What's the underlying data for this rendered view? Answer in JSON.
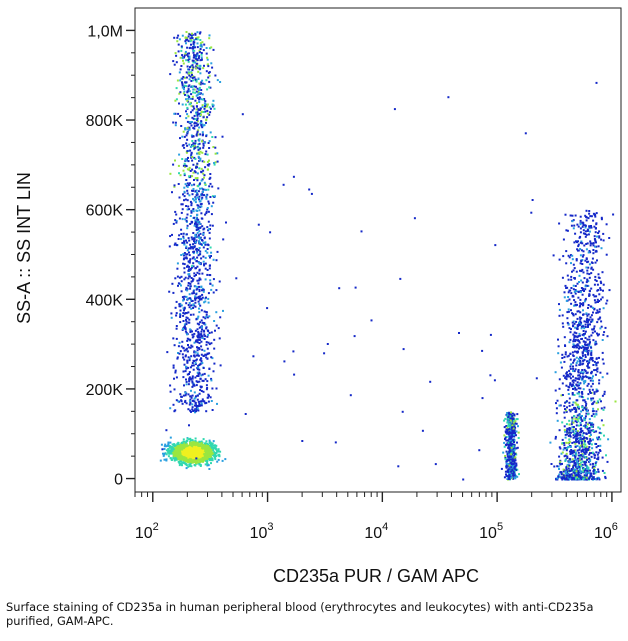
{
  "chart_data": {
    "type": "scatter",
    "plot_style": "pseudocolor density dot plot",
    "xlabel": "CD235a PUR / GAM APC",
    "ylabel": "SS-A :: SS INT LIN",
    "x_scale": "log",
    "xlim": [
      70,
      1200000
    ],
    "ylim": [
      -30000,
      1050000
    ],
    "x_ticks": [
      {
        "base": "10",
        "exp": "2",
        "value": 100
      },
      {
        "base": "10",
        "exp": "3",
        "value": 1000
      },
      {
        "base": "10",
        "exp": "4",
        "value": 10000
      },
      {
        "base": "10",
        "exp": "5",
        "value": 100000
      },
      {
        "base": "10",
        "exp": "6",
        "value": 1000000
      }
    ],
    "y_ticks": [
      {
        "label": "0",
        "value": 0
      },
      {
        "label": "200K",
        "value": 200000
      },
      {
        "label": "400K",
        "value": 400000
      },
      {
        "label": "600K",
        "value": 600000
      },
      {
        "label": "800K",
        "value": 800000
      },
      {
        "label": "1,0M",
        "value": 1000000
      }
    ],
    "density_colors": [
      "#1428c8",
      "#2aa0e0",
      "#30d8b0",
      "#9ae640",
      "#f0f020"
    ],
    "populations": [
      {
        "x_center": 220,
        "x_spread_decades": 0.22,
        "y_center": 60000,
        "y_spread": 30000,
        "density": "high"
      },
      {
        "x_center": 230,
        "x_spread_decades": 0.2,
        "y_range": [
          150000,
          1000000
        ],
        "density": "medium"
      },
      {
        "x_center": 130000,
        "x_spread_decades": 0.06,
        "y_range": [
          0,
          150000
        ],
        "density": "medium"
      },
      {
        "x_center": 500000,
        "x_spread_decades": 0.22,
        "y_range": [
          0,
          600000
        ],
        "density": "medium"
      }
    ]
  },
  "caption": "Surface staining of CD235a in human peripheral blood (erythrocytes and leukocytes) with anti-CD235a purified, GAM-APC."
}
